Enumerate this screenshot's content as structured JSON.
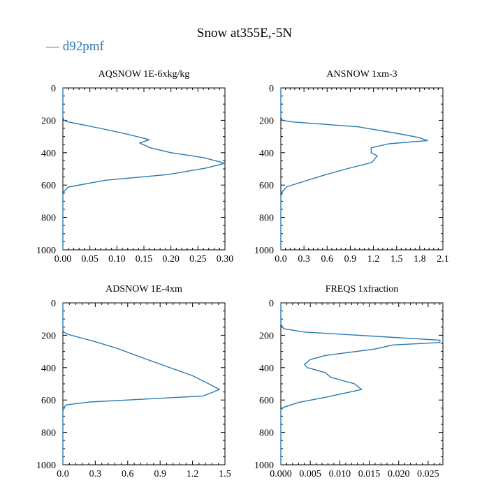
{
  "chart_data": {
    "title": "Snow at355E,-5N",
    "legend": [
      {
        "name": "d92pmf",
        "color": "#2a7ab0"
      }
    ],
    "panels": [
      {
        "type": "line",
        "title": "AQSNOW  1E-6xkg/kg",
        "xlim": [
          0,
          0.3
        ],
        "ylim": [
          1000,
          0
        ],
        "xticks": [
          "0.00",
          "0.05",
          "0.10",
          "0.15",
          "0.20",
          "0.25",
          "0.30"
        ],
        "xtick_values": [
          0,
          0.05,
          0.1,
          0.15,
          0.2,
          0.25,
          0.3
        ],
        "yticks": [
          "0",
          "200",
          "400",
          "600",
          "800",
          "1000"
        ],
        "ytick_values": [
          0,
          200,
          400,
          600,
          800,
          1000
        ],
        "series": [
          {
            "name": "d92pmf",
            "x": [
              0,
              0,
              0.002,
              0.01,
              0.07,
              0.125,
              0.16,
              0.142,
              0.162,
              0.2,
              0.26,
              0.3,
              0.265,
              0.195,
              0.08,
              0.01,
              0.002,
              0,
              0,
              0
            ],
            "y": [
              0,
              180,
              200,
              210,
              250,
              290,
              320,
              340,
              370,
              400,
              430,
              465,
              495,
              535,
              570,
              612,
              640,
              660,
              700,
              1000
            ]
          }
        ]
      },
      {
        "type": "line",
        "title": "ANSNOW  1xm-3",
        "xlim": [
          0,
          2.1
        ],
        "ylim": [
          1000,
          0
        ],
        "xticks": [
          "0.0",
          "0.3",
          "0.6",
          "0.9",
          "1.2",
          "1.5",
          "1.8",
          "2.1"
        ],
        "xtick_values": [
          0,
          0.3,
          0.6,
          0.9,
          1.2,
          1.5,
          1.8,
          2.1
        ],
        "yticks": [
          "0",
          "200",
          "400",
          "600",
          "800",
          "1000"
        ],
        "ytick_values": [
          0,
          200,
          400,
          600,
          800,
          1000
        ],
        "series": [
          {
            "name": "d92pmf",
            "x": [
              0,
              0,
              0.02,
              0.15,
              1.0,
              1.5,
              1.78,
              1.9,
              1.4,
              1.17,
              1.17,
              1.25,
              1.18,
              0.85,
              0.55,
              0.08,
              0.02,
              0,
              0
            ],
            "y": [
              0,
              180,
              200,
              210,
              240,
              280,
              305,
              325,
              345,
              370,
              400,
              420,
              460,
              500,
              540,
              610,
              640,
              670,
              1000
            ]
          }
        ]
      },
      {
        "type": "line",
        "title": "ADSNOW  1E-4xm",
        "xlim": [
          0,
          1.5
        ],
        "ylim": [
          1000,
          0
        ],
        "xticks": [
          "0.0",
          "0.3",
          "0.6",
          "0.9",
          "1.2",
          "1.5"
        ],
        "xtick_values": [
          0,
          0.3,
          0.6,
          0.9,
          1.2,
          1.5
        ],
        "yticks": [
          "0",
          "200",
          "400",
          "600",
          "800",
          "1000"
        ],
        "ytick_values": [
          0,
          200,
          400,
          600,
          800,
          1000
        ],
        "series": [
          {
            "name": "d92pmf",
            "x": [
              0,
              0,
              0.005,
              0.05,
              0.3,
              0.5,
              0.7,
              0.95,
              1.2,
              1.35,
              1.45,
              1.3,
              0.6,
              0.25,
              0.03,
              0.005,
              0,
              0
            ],
            "y": [
              0,
              160,
              180,
              195,
              240,
              280,
              330,
              390,
              450,
              500,
              535,
              575,
              600,
              612,
              630,
              650,
              680,
              1000
            ]
          }
        ]
      },
      {
        "type": "line",
        "title": "FREQS  1xfraction",
        "xlim": [
          0,
          0.0275
        ],
        "ylim": [
          1000,
          0
        ],
        "xticks": [
          "0.000",
          "0.005",
          "0.010",
          "0.015",
          "0.020",
          "0.025"
        ],
        "xtick_values": [
          0,
          0.005,
          0.01,
          0.015,
          0.02,
          0.025
        ],
        "yticks": [
          "0",
          "200",
          "400",
          "600",
          "800",
          "1000"
        ],
        "ytick_values": [
          0,
          200,
          400,
          600,
          800,
          1000
        ],
        "series": [
          {
            "name": "d92pmf",
            "x": [
              0,
              0,
              0.0005,
              0.004,
              0.027,
              0.027,
              0.019,
              0.016,
              0.0075,
              0.005,
              0.004,
              0.0045,
              0.0075,
              0.0085,
              0.0125,
              0.0137,
              0.008,
              0.003,
              0.0005,
              0,
              0
            ],
            "y": [
              0,
              130,
              160,
              180,
              230,
              245,
              260,
              285,
              325,
              350,
              380,
              400,
              430,
              460,
              500,
              535,
              580,
              615,
              645,
              660,
              1000
            ]
          }
        ]
      }
    ]
  }
}
